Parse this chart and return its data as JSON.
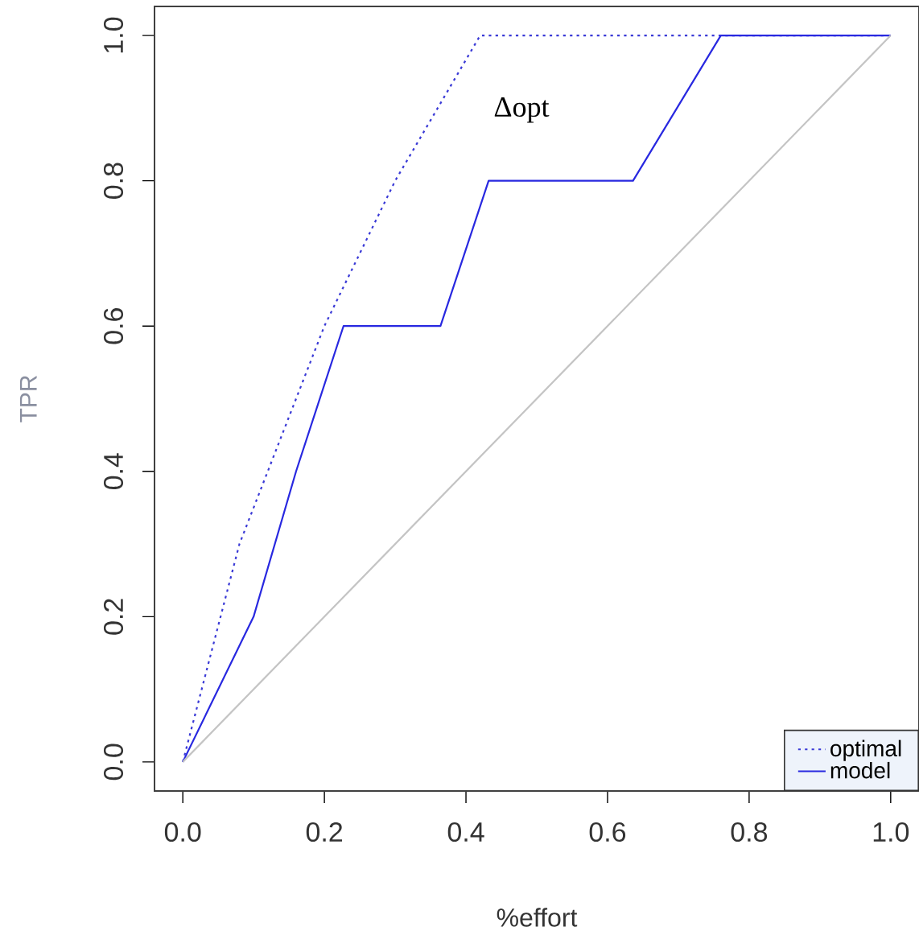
{
  "chart_data": {
    "type": "line",
    "xlabel": "%effort",
    "ylabel": "TPR",
    "xlim": [
      -0.04,
      1.04
    ],
    "ylim": [
      -0.04,
      1.04
    ],
    "xticks": [
      {
        "value": 0,
        "label": "0.0"
      },
      0.2,
      0.4,
      0.6,
      0.8,
      {
        "value": 1,
        "label": "1.0"
      }
    ],
    "yticks": [
      {
        "value": 0,
        "label": "0.0"
      },
      0.2,
      0.4,
      0.6,
      0.8,
      {
        "value": 1,
        "label": "1.0"
      }
    ],
    "legend": "bottom right",
    "annotations": [
      "Δopt"
    ],
    "series": [
      {
        "name": "optimal",
        "color": "#3a3ad6",
        "line_style": "dotted",
        "x": [
          0,
          0.08,
          0.2,
          0.3,
          0.42,
          1
        ],
        "values": [
          0,
          0.3,
          0.6,
          0.8,
          1,
          1
        ]
      },
      {
        "name": "model",
        "color": "#2828e0",
        "line_style": "solid",
        "x": [
          0,
          0.1,
          0.16,
          0.227,
          0.364,
          0.432,
          0.636,
          0.76,
          1
        ],
        "values": [
          0,
          0.2,
          0.4,
          0.6,
          0.6,
          0.8,
          0.8,
          1,
          1
        ]
      },
      {
        "color": "#c4c4c4",
        "line_style": "solid",
        "x": [
          0,
          1
        ],
        "values": [
          0,
          1
        ]
      }
    ]
  }
}
